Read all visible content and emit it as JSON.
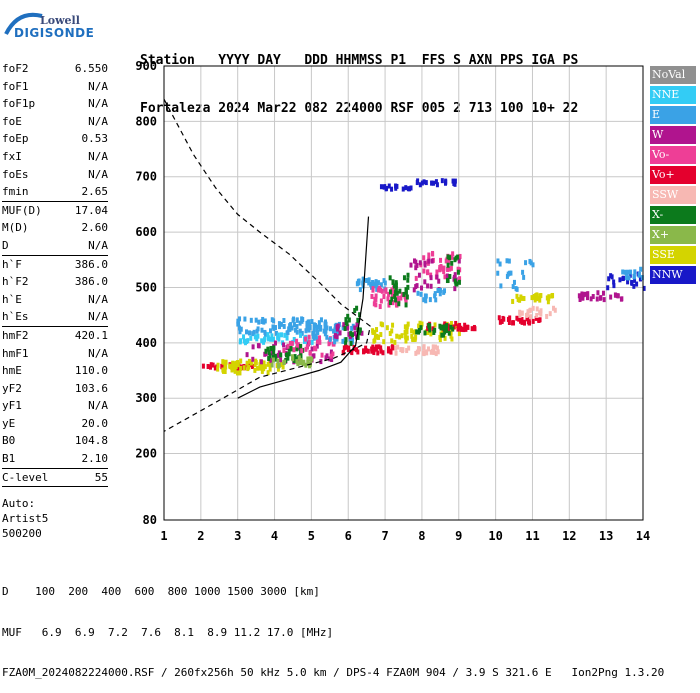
{
  "logo": {
    "top": "Lowell",
    "bottom": "DIGISONDE"
  },
  "header": {
    "line1": "Station   YYYY DAY   DDD HHMMSS P1  FFS S AXN PPS IGA PS",
    "line2": "Fortaleza 2024 Mar22 082 224000 RSF 005 2 713 100 10+ 22"
  },
  "params": {
    "group1": [
      {
        "k": "foF2",
        "v": "6.550"
      },
      {
        "k": "foF1",
        "v": "N/A"
      },
      {
        "k": "foF1p",
        "v": "N/A"
      },
      {
        "k": "foE",
        "v": "N/A"
      },
      {
        "k": "foEp",
        "v": "0.53"
      },
      {
        "k": "fxI",
        "v": "N/A"
      },
      {
        "k": "foEs",
        "v": "N/A"
      },
      {
        "k": "fmin",
        "v": "2.65"
      }
    ],
    "group2": [
      {
        "k": "MUF(D)",
        "v": "17.04"
      },
      {
        "k": "M(D)",
        "v": "2.60"
      },
      {
        "k": "D",
        "v": "N/A"
      }
    ],
    "group3": [
      {
        "k": "h`F",
        "v": "386.0"
      },
      {
        "k": "h`F2",
        "v": "386.0"
      },
      {
        "k": "h`E",
        "v": "N/A"
      },
      {
        "k": "h`Es",
        "v": "N/A"
      }
    ],
    "group4": [
      {
        "k": "hmF2",
        "v": "420.1"
      },
      {
        "k": "hmF1",
        "v": "N/A"
      },
      {
        "k": "hmE",
        "v": "110.0"
      },
      {
        "k": "yF2",
        "v": "103.6"
      },
      {
        "k": "yF1",
        "v": "N/A"
      },
      {
        "k": "yE",
        "v": "20.0"
      },
      {
        "k": "B0",
        "v": "104.8"
      },
      {
        "k": "B1",
        "v": "2.10"
      }
    ],
    "group5": [
      {
        "k": "C-level",
        "v": "55"
      }
    ],
    "auto_lines": [
      "Auto:",
      "Artist5",
      "500200"
    ]
  },
  "legend": [
    {
      "label": "NoVal",
      "color": "#909090"
    },
    {
      "label": "NNE",
      "color": "#33ccf5"
    },
    {
      "label": "E",
      "color": "#3aa2e6"
    },
    {
      "label": "W",
      "color": "#b0148e"
    },
    {
      "label": "Vo-",
      "color": "#ee3e96"
    },
    {
      "label": "Vo+",
      "color": "#e4002d"
    },
    {
      "label": "SSW",
      "color": "#f7b8b3"
    },
    {
      "label": "X-",
      "color": "#0c7a1c"
    },
    {
      "label": "X+",
      "color": "#8ab84a"
    },
    {
      "label": "SSE",
      "color": "#d4d400"
    },
    {
      "label": "NNW",
      "color": "#1818c8"
    }
  ],
  "footer": {
    "line1": "D    100  200  400  600  800 1000 1500 3000 [km]",
    "line2": "MUF   6.9  6.9  7.2  7.6  8.1  8.9 11.2 17.0 [MHz]",
    "line3": "FZA0M_2024082224000.RSF / 260fx256h 50 kHz 5.0 km / DPS-4 FZA0M 904 / 3.9 S 321.6 E   Ion2Png 1.3.20"
  },
  "chart_data": {
    "type": "scatter",
    "xlim": [
      1,
      14
    ],
    "ylim": [
      80,
      900
    ],
    "x_ticks": [
      1,
      2,
      3,
      4,
      5,
      6,
      7,
      8,
      9,
      10,
      11,
      12,
      13,
      14
    ],
    "y_ticks": [
      80,
      200,
      300,
      400,
      500,
      600,
      700,
      800,
      900
    ],
    "grid": true,
    "clusters": [
      {
        "color": "#e4002d",
        "x": [
          2.0,
          3.4
        ],
        "y": [
          358,
          366
        ],
        "n": 40
      },
      {
        "color": "#d4d400",
        "x": [
          2.4,
          4.2
        ],
        "y": [
          350,
          372
        ],
        "n": 60
      },
      {
        "color": "#3aa2e6",
        "x": [
          2.9,
          5.4
        ],
        "y": [
          420,
          448
        ],
        "n": 80
      },
      {
        "color": "#33ccf5",
        "x": [
          3.0,
          5.2
        ],
        "y": [
          404,
          420
        ],
        "n": 40
      },
      {
        "color": "#b0148e",
        "x": [
          3.2,
          5.6
        ],
        "y": [
          370,
          405
        ],
        "n": 40
      },
      {
        "color": "#0c7a1c",
        "x": [
          3.6,
          4.8
        ],
        "y": [
          372,
          398
        ],
        "n": 30
      },
      {
        "color": "#ee3e96",
        "x": [
          4.2,
          5.6
        ],
        "y": [
          380,
          415
        ],
        "n": 30
      },
      {
        "color": "#8ab84a",
        "x": [
          3.8,
          5.0
        ],
        "y": [
          362,
          380
        ],
        "n": 25
      },
      {
        "color": "#3aa2e6",
        "x": [
          5.0,
          6.2
        ],
        "y": [
          405,
          440
        ],
        "n": 40
      },
      {
        "color": "#b0148e",
        "x": [
          5.6,
          6.4
        ],
        "y": [
          415,
          440
        ],
        "n": 20
      },
      {
        "color": "#0c7a1c",
        "x": [
          5.8,
          6.3
        ],
        "y": [
          400,
          470
        ],
        "n": 20
      },
      {
        "color": "#e4002d",
        "x": [
          5.8,
          7.2
        ],
        "y": [
          386,
          398
        ],
        "n": 40
      },
      {
        "color": "#3aa2e6",
        "x": [
          6.2,
          7.0
        ],
        "y": [
          500,
          520
        ],
        "n": 30
      },
      {
        "color": "#ee3e96",
        "x": [
          6.6,
          7.6
        ],
        "y": [
          470,
          505
        ],
        "n": 40
      },
      {
        "color": "#0c7a1c",
        "x": [
          7.0,
          7.6
        ],
        "y": [
          470,
          530
        ],
        "n": 25
      },
      {
        "color": "#d4d400",
        "x": [
          6.6,
          7.6
        ],
        "y": [
          405,
          440
        ],
        "n": 30
      },
      {
        "color": "#f7b8b3",
        "x": [
          7.2,
          8.5
        ],
        "y": [
          385,
          398
        ],
        "n": 30
      },
      {
        "color": "#d4d400",
        "x": [
          7.5,
          9.0
        ],
        "y": [
          410,
          440
        ],
        "n": 40
      },
      {
        "color": "#e4002d",
        "x": [
          8.0,
          9.4
        ],
        "y": [
          428,
          440
        ],
        "n": 30
      },
      {
        "color": "#0c7a1c",
        "x": [
          7.8,
          8.8
        ],
        "y": [
          418,
          438
        ],
        "n": 25
      },
      {
        "color": "#ee3e96",
        "x": [
          7.8,
          9.0
        ],
        "y": [
          520,
          570
        ],
        "n": 40
      },
      {
        "color": "#b0148e",
        "x": [
          7.6,
          9.0
        ],
        "y": [
          500,
          560
        ],
        "n": 30
      },
      {
        "color": "#0c7a1c",
        "x": [
          8.6,
          9.0
        ],
        "y": [
          510,
          560
        ],
        "n": 15
      },
      {
        "color": "#3aa2e6",
        "x": [
          7.8,
          8.6
        ],
        "y": [
          480,
          500
        ],
        "n": 15
      },
      {
        "color": "#1818c8",
        "x": [
          6.8,
          7.8
        ],
        "y": [
          682,
          688
        ],
        "n": 15
      },
      {
        "color": "#1818c8",
        "x": [
          7.8,
          8.9
        ],
        "y": [
          690,
          698
        ],
        "n": 20
      },
      {
        "color": "#e4002d",
        "x": [
          10.0,
          11.2
        ],
        "y": [
          440,
          450
        ],
        "n": 30
      },
      {
        "color": "#f7b8b3",
        "x": [
          10.6,
          11.6
        ],
        "y": [
          448,
          468
        ],
        "n": 20
      },
      {
        "color": "#d4d400",
        "x": [
          10.4,
          11.6
        ],
        "y": [
          478,
          492
        ],
        "n": 25
      },
      {
        "color": "#3aa2e6",
        "x": [
          10.0,
          11.0
        ],
        "y": [
          500,
          560
        ],
        "n": 20
      },
      {
        "color": "#b0148e",
        "x": [
          12.2,
          13.4
        ],
        "y": [
          480,
          495
        ],
        "n": 25
      },
      {
        "color": "#1818c8",
        "x": [
          13.0,
          14.0
        ],
        "y": [
          500,
          530
        ],
        "n": 20
      },
      {
        "color": "#3aa2e6",
        "x": [
          13.4,
          14.0
        ],
        "y": [
          520,
          540
        ],
        "n": 15
      }
    ],
    "profile_dashed": [
      [
        1.0,
        840
      ],
      [
        1.8,
        740
      ],
      [
        2.4,
        680
      ],
      [
        3.0,
        632
      ],
      [
        3.6,
        600
      ],
      [
        4.4,
        560
      ],
      [
        5.2,
        510
      ],
      [
        5.8,
        470
      ],
      [
        6.4,
        440
      ],
      [
        6.6,
        430
      ],
      [
        6.5,
        400
      ],
      [
        6.2,
        390
      ],
      [
        5.6,
        372
      ],
      [
        4.6,
        355
      ],
      [
        3.6,
        338
      ],
      [
        2.6,
        300
      ],
      [
        1.8,
        270
      ],
      [
        1.0,
        240
      ]
    ],
    "profile_solid": [
      [
        3.0,
        300
      ],
      [
        3.6,
        320
      ],
      [
        4.4,
        335
      ],
      [
        5.2,
        350
      ],
      [
        5.8,
        365
      ],
      [
        6.2,
        395
      ],
      [
        6.4,
        480
      ],
      [
        6.55,
        628
      ]
    ]
  }
}
